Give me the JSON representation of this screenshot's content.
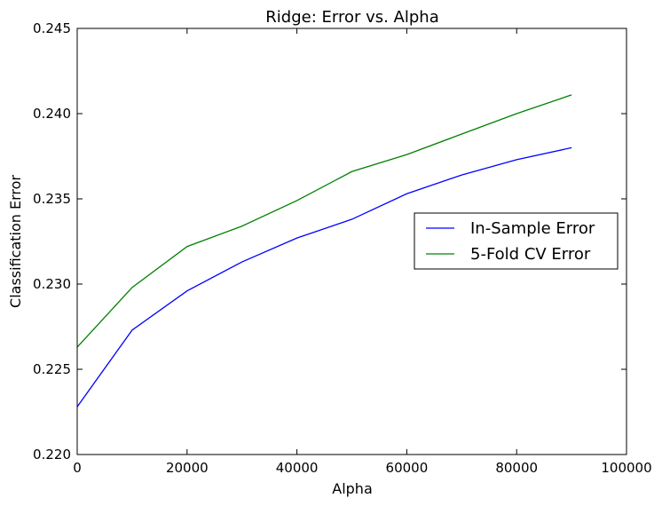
{
  "chart_data": {
    "type": "line",
    "title": "Ridge: Error vs. Alpha",
    "xlabel": "Alpha",
    "ylabel": "Classification Error",
    "xlim": [
      0,
      100000
    ],
    "ylim": [
      0.22,
      0.245
    ],
    "xticks": [
      0,
      20000,
      40000,
      60000,
      80000,
      100000
    ],
    "xtick_labels": [
      "0",
      "20000",
      "40000",
      "60000",
      "80000",
      "100000"
    ],
    "yticks": [
      0.22,
      0.225,
      0.23,
      0.235,
      0.24,
      0.245
    ],
    "ytick_labels": [
      "0.220",
      "0.225",
      "0.230",
      "0.235",
      "0.240",
      "0.245"
    ],
    "grid": false,
    "legend_position": "right",
    "x": [
      0,
      10000,
      20000,
      30000,
      40000,
      50000,
      60000,
      70000,
      80000,
      90000
    ],
    "series": [
      {
        "name": "In-Sample Error",
        "color": "#0000ff",
        "values": [
          0.2228,
          0.2273,
          0.2296,
          0.2313,
          0.2327,
          0.2338,
          0.2353,
          0.2364,
          0.2373,
          0.238
        ]
      },
      {
        "name": "5-Fold CV Error",
        "color": "#008000",
        "values": [
          0.2263,
          0.2298,
          0.2322,
          0.2334,
          0.2349,
          0.2366,
          0.2376,
          0.2388,
          0.24,
          0.2411
        ]
      }
    ]
  }
}
